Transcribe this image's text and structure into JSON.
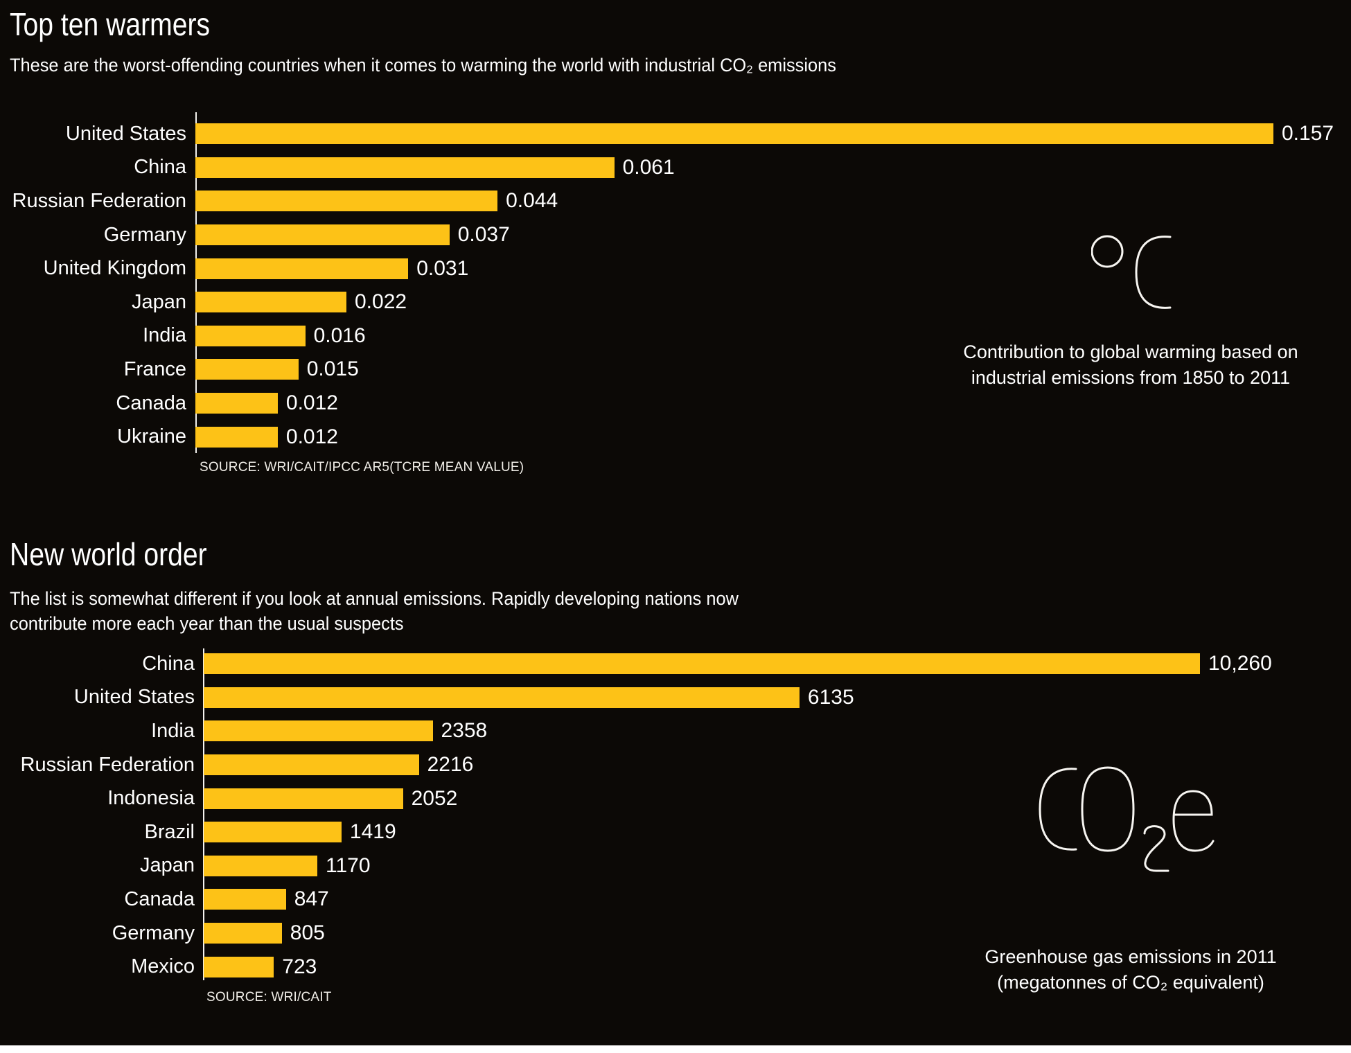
{
  "colors": {
    "background": "#0c0906",
    "bar_yellow": "#fdc217",
    "text": "#ffffff"
  },
  "chart_data": [
    {
      "type": "bar",
      "orientation": "horizontal",
      "title": "Top ten warmers",
      "subtitle": "These are the worst-offending countries when it comes to warming the world with industrial CO₂ emissions",
      "categories": [
        "United States",
        "China",
        "Russian Federation",
        "Germany",
        "United Kingdom",
        "Japan",
        "India",
        "France",
        "Canada",
        "Ukraine"
      ],
      "values": [
        0.157,
        0.061,
        0.044,
        0.037,
        0.031,
        0.022,
        0.016,
        0.015,
        0.012,
        0.012
      ],
      "value_labels": [
        "0.157",
        "0.061",
        "0.044",
        "0.037",
        "0.031",
        "0.022",
        "0.016",
        "0.015",
        "0.012",
        "0.012"
      ],
      "xlim": [
        0,
        0.157
      ],
      "grid": false,
      "value_label_position": "end-of-bar",
      "unit_symbol": "°C",
      "source": "SOURCE: WRI/CAIT/IPCC AR5(TCRE MEAN VALUE)",
      "annotation": {
        "symbol": "°C",
        "caption_lines": [
          "Contribution to global warming based on",
          "industrial emissions from 1850 to 2011"
        ]
      }
    },
    {
      "type": "bar",
      "orientation": "horizontal",
      "title": "New world order",
      "subtitle_lines": [
        "The list is somewhat different if you look at annual emissions. Rapidly developing nations now",
        "contribute more each year than the usual suspects"
      ],
      "categories": [
        "China",
        "United States",
        "India",
        "Russian Federation",
        "Indonesia",
        "Brazil",
        "Japan",
        "Canada",
        "Germany",
        "Mexico"
      ],
      "values": [
        10260,
        6135,
        2358,
        2216,
        2052,
        1419,
        1170,
        847,
        805,
        723
      ],
      "value_labels": [
        "10,260",
        "6135",
        "2358",
        "2216",
        "2052",
        "1419",
        "1170",
        "847",
        "805",
        "723"
      ],
      "xlim": [
        0,
        10260
      ],
      "grid": false,
      "value_label_position": "end-of-bar",
      "unit_symbol": "CO₂e",
      "source": "SOURCE: WRI/CAIT",
      "annotation": {
        "symbol": "CO₂e",
        "caption_lines": [
          "Greenhouse gas emissions in 2011",
          "(megatonnes of CO₂ equivalent)"
        ]
      }
    }
  ]
}
